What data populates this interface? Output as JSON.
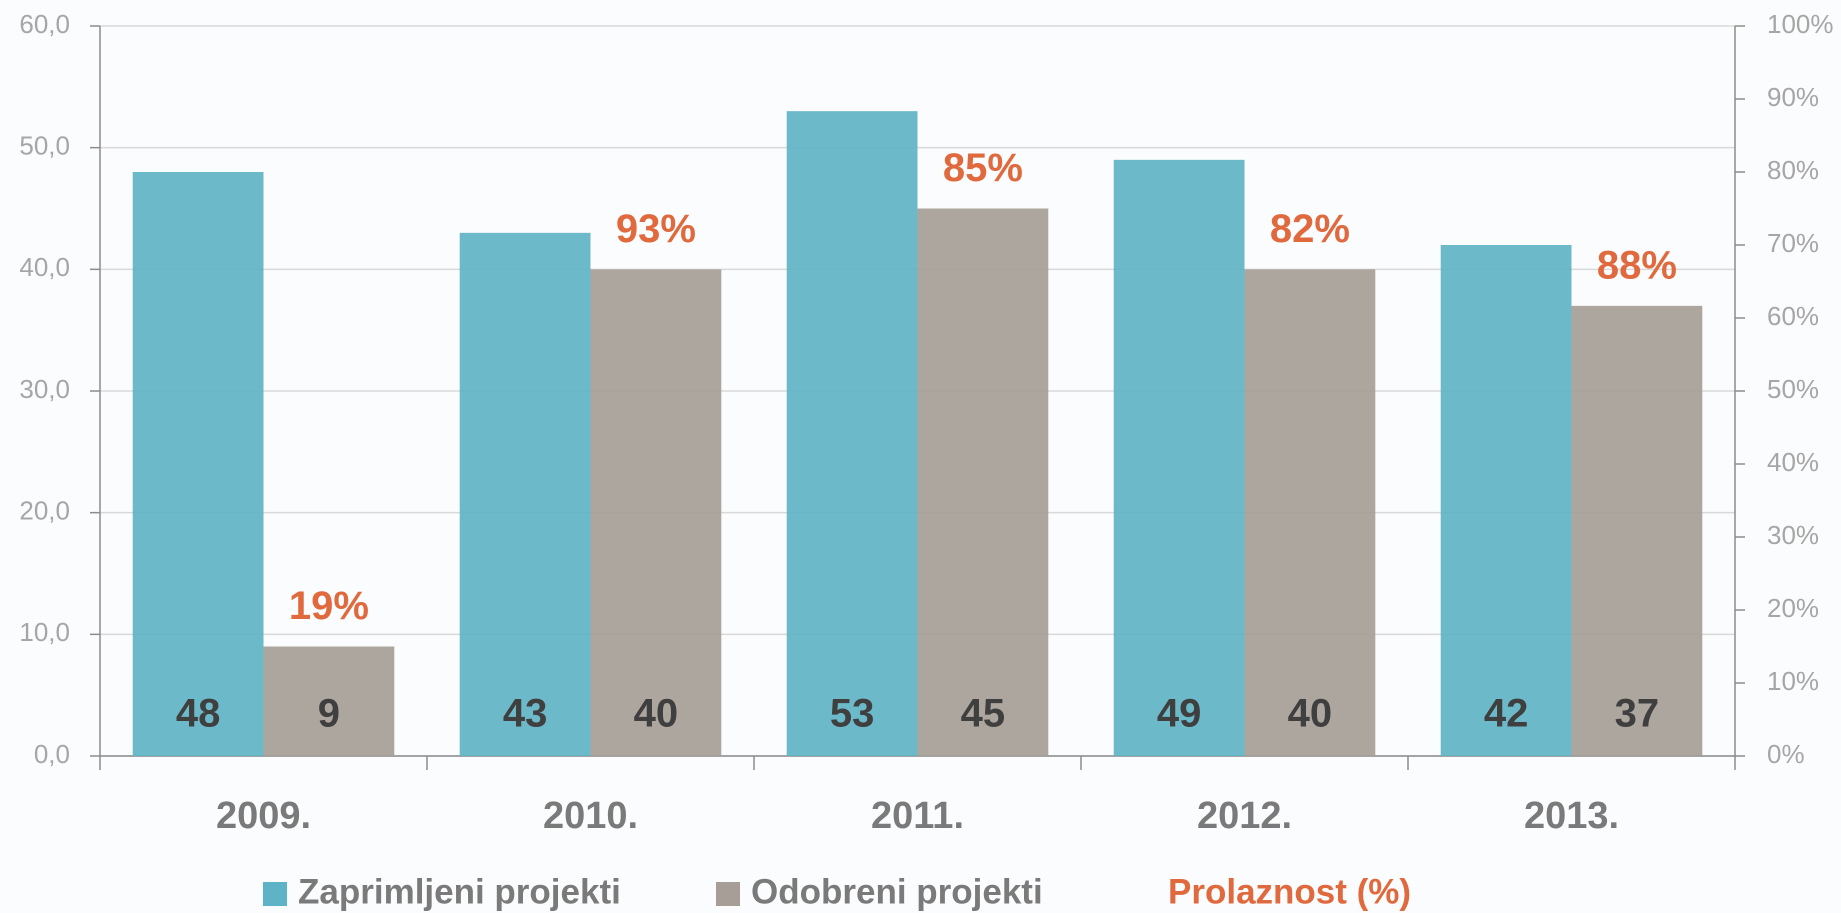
{
  "chart_data": {
    "type": "bar",
    "categories": [
      "2009.",
      "2010.",
      "2011.",
      "2012.",
      "2013."
    ],
    "series": [
      {
        "name": "Zaprimljeni projekti",
        "color": "#5fb3c6",
        "values": [
          48,
          43,
          53,
          49,
          42
        ]
      },
      {
        "name": "Odobreni projekti",
        "color": "#a69e97",
        "values": [
          9,
          40,
          45,
          40,
          37
        ]
      },
      {
        "name": "Prolaznost (%)",
        "color": "#e0693e",
        "axis": "y2",
        "values": [
          19,
          93,
          85,
          82,
          88
        ],
        "value_labels": [
          "19%",
          "93%",
          "85%",
          "82%",
          "88%"
        ]
      }
    ],
    "ylim": [
      0,
      60
    ],
    "yticks": [
      {
        "value": 0,
        "label": "0,0"
      },
      {
        "value": 10,
        "label": "10,0"
      },
      {
        "value": 20,
        "label": "20,0"
      },
      {
        "value": 30,
        "label": "30,0"
      },
      {
        "value": 40,
        "label": "40,0"
      },
      {
        "value": 50,
        "label": "50,0"
      },
      {
        "value": 60,
        "label": "60,0"
      }
    ],
    "y2lim": [
      0,
      100
    ],
    "y2ticks": [
      {
        "value": 0,
        "label": "0%"
      },
      {
        "value": 10,
        "label": "10%"
      },
      {
        "value": 20,
        "label": "20%"
      },
      {
        "value": 30,
        "label": "30%"
      },
      {
        "value": 40,
        "label": "40%"
      },
      {
        "value": 50,
        "label": "50%"
      },
      {
        "value": 60,
        "label": "60%"
      },
      {
        "value": 70,
        "label": "70%"
      },
      {
        "value": 80,
        "label": "80%"
      },
      {
        "value": 90,
        "label": "90%"
      },
      {
        "value": 100,
        "label": "100%"
      }
    ],
    "grid": true,
    "legend": "bottom"
  }
}
